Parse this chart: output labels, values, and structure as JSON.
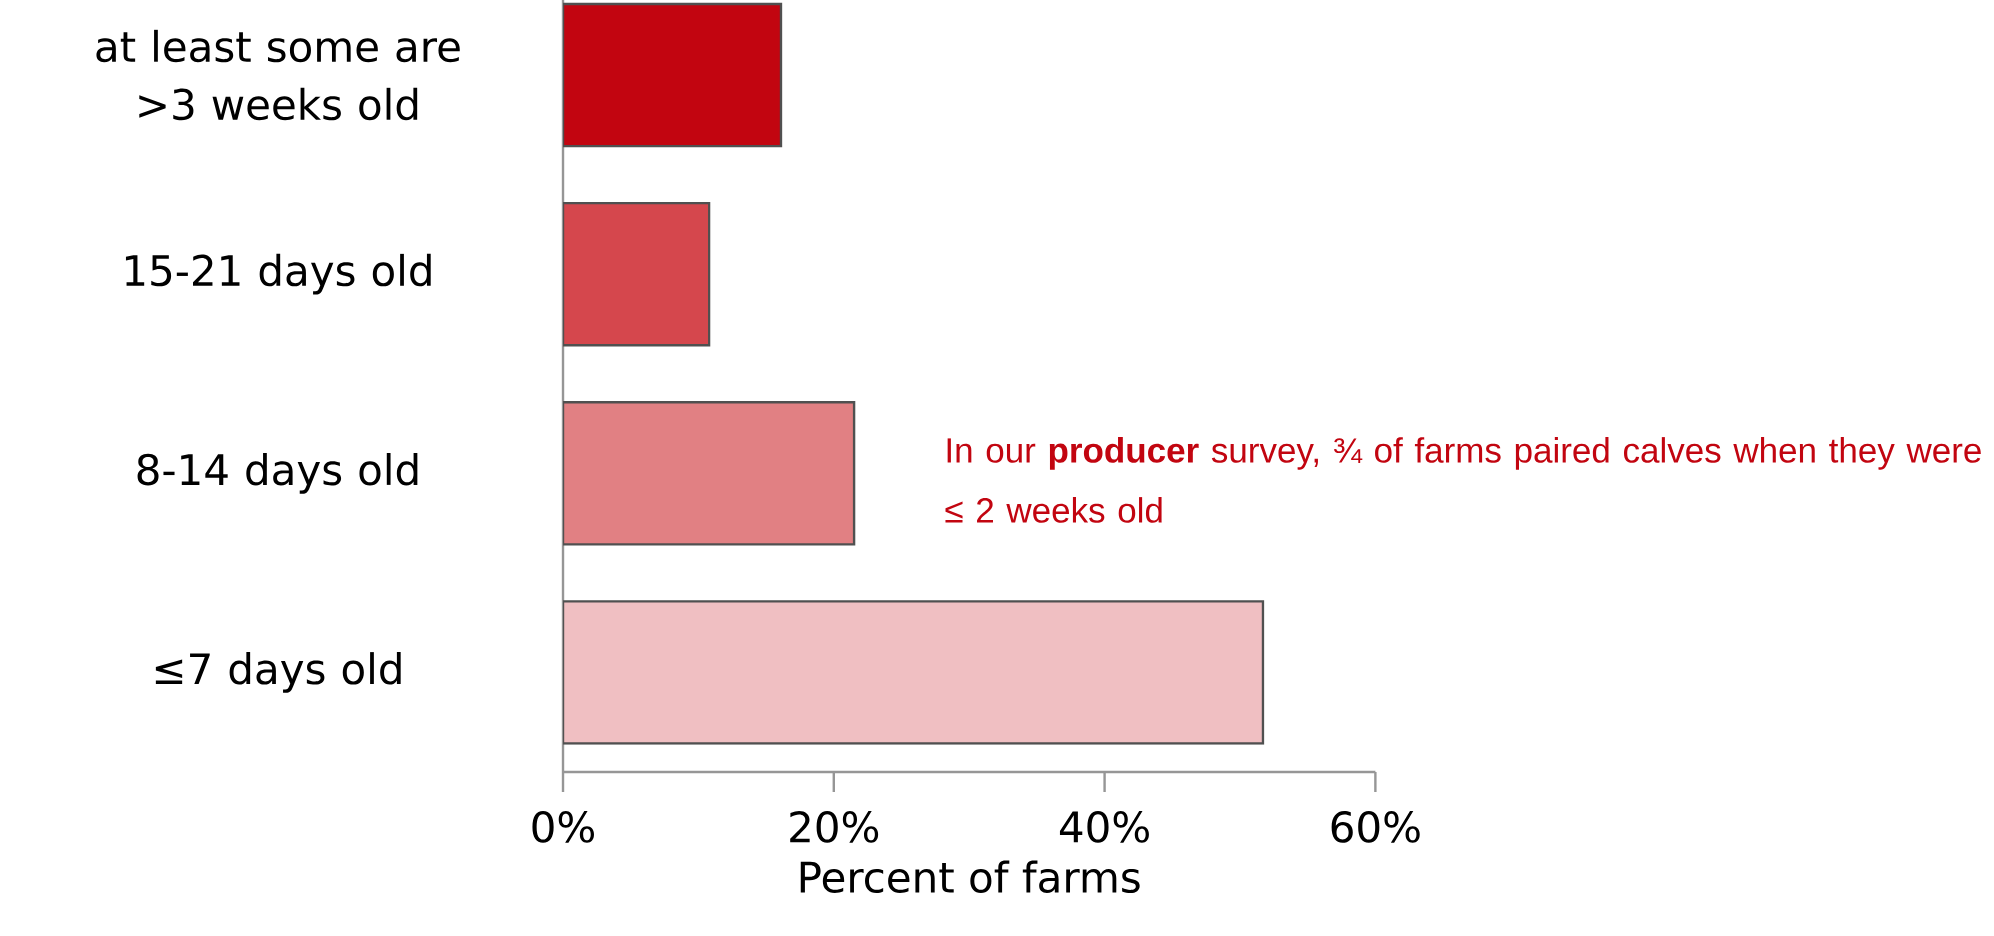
{
  "chart_data": {
    "type": "bar",
    "orientation": "horizontal",
    "categories": [
      "at least some are >3 weeks old",
      "15-21 days old",
      "8-14 days old",
      "≤7 days old"
    ],
    "values": [
      16.1,
      10.8,
      21.5,
      51.7
    ],
    "colors": [
      "#c20510",
      "#d5474d",
      "#e18083",
      "#f0bfc2"
    ],
    "xlabel": "Percent of farms",
    "xlim": [
      0,
      60
    ],
    "xticks": [
      {
        "value": 0,
        "label": "0%"
      },
      {
        "value": 20,
        "label": "20%"
      },
      {
        "value": 40,
        "label": "40%"
      },
      {
        "value": 60,
        "label": "60%"
      }
    ],
    "annotations": [
      "In our **producer** survey, ¾ of farms paired calves when they were ≤ 2 weeks old"
    ],
    "grid": false
  }
}
